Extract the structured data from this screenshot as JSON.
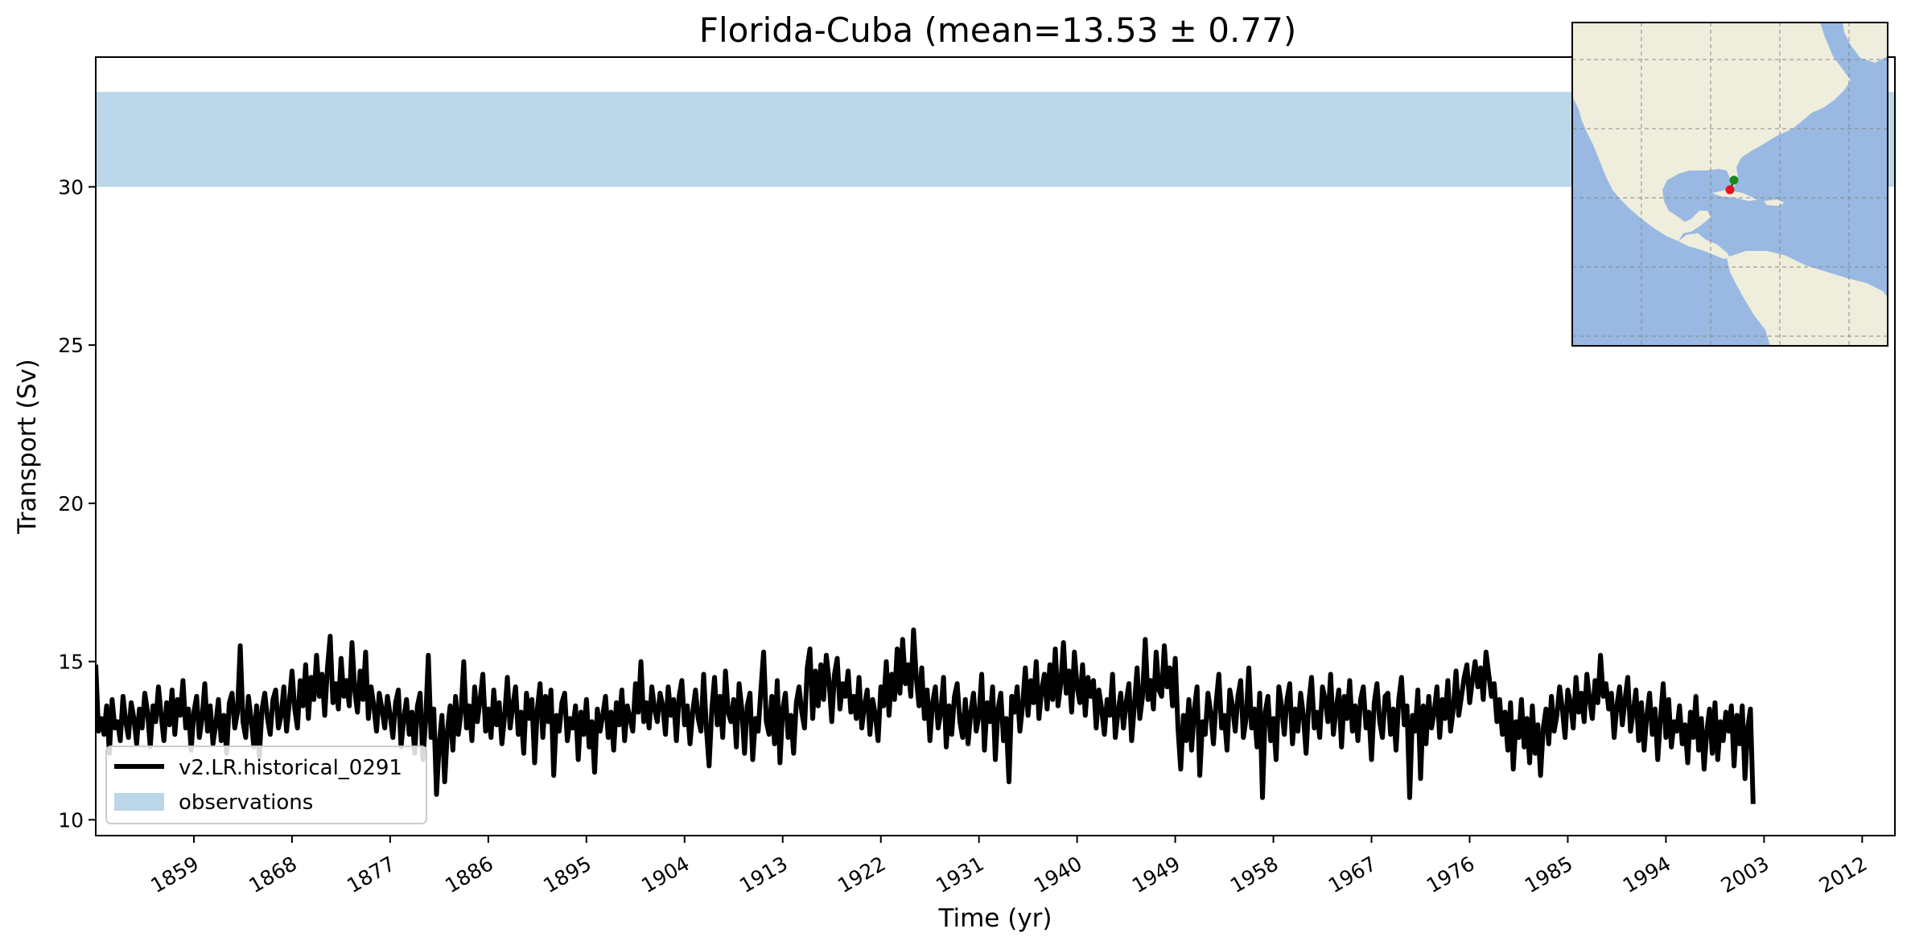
{
  "chart_data": {
    "type": "line",
    "title": "Florida-Cuba (mean=13.53 ± 0.77)",
    "xlabel": "Time (yr)",
    "ylabel": "Transport (Sv)",
    "xlim": [
      1850,
      2015
    ],
    "ylim": [
      9.5,
      34.1
    ],
    "x_ticks": [
      1859,
      1868,
      1877,
      1886,
      1895,
      1904,
      1913,
      1922,
      1931,
      1940,
      1949,
      1958,
      1967,
      1976,
      1985,
      1994,
      2003,
      2012
    ],
    "y_ticks": [
      10,
      15,
      20,
      25,
      30
    ],
    "grid": false,
    "legend_position": "lower-left",
    "series": [
      {
        "name": "v2.LR.historical_0291",
        "color": "#000000",
        "style": "line",
        "x_start": 1850,
        "x_step": 0.25,
        "values": [
          14.9,
          12.8,
          13.2,
          12.7,
          13.6,
          12.1,
          13.8,
          12.9,
          13.1,
          12.5,
          13.9,
          13.1,
          12.6,
          13.7,
          13.2,
          12.4,
          13.5,
          12.9,
          14.0,
          13.4,
          12.3,
          13.6,
          13.1,
          14.2,
          13.3,
          12.5,
          13.7,
          13.0,
          14.1,
          12.7,
          13.8,
          13.3,
          14.4,
          12.9,
          13.5,
          12.2,
          13.4,
          13.9,
          12.6,
          13.2,
          14.3,
          12.8,
          13.6,
          12.4,
          13.0,
          13.8,
          12.5,
          13.3,
          12.1,
          13.7,
          14.0,
          12.9,
          13.4,
          15.5,
          13.1,
          12.6,
          13.9,
          13.2,
          12.3,
          13.6,
          12.0,
          13.5,
          14.0,
          13.2,
          12.7,
          13.8,
          14.1,
          12.9,
          13.3,
          14.2,
          12.8,
          13.7,
          14.7,
          13.5,
          12.9,
          14.4,
          13.6,
          14.9,
          13.2,
          14.5,
          13.8,
          15.2,
          13.9,
          14.6,
          13.3,
          14.8,
          15.8,
          13.7,
          14.3,
          13.5,
          15.1,
          13.9,
          14.4,
          13.6,
          15.6,
          14.1,
          13.4,
          14.7,
          13.8,
          15.3,
          13.2,
          14.2,
          13.6,
          12.8,
          14.0,
          13.5,
          12.9,
          13.9,
          13.3,
          12.6,
          13.7,
          14.1,
          12.3,
          13.2,
          13.8,
          12.7,
          13.4,
          12.1,
          13.6,
          14.0,
          11.9,
          13.1,
          15.2,
          12.6,
          13.5,
          10.8,
          12.4,
          13.3,
          11.2,
          12.8,
          13.6,
          12.2,
          13.9,
          12.7,
          13.4,
          15.0,
          12.9,
          13.6,
          12.5,
          14.2,
          13.1,
          13.8,
          14.6,
          12.8,
          13.5,
          12.6,
          14.1,
          13.0,
          13.7,
          12.4,
          13.3,
          14.5,
          12.9,
          13.6,
          14.2,
          12.7,
          13.4,
          12.1,
          14.0,
          13.2,
          13.8,
          11.8,
          13.5,
          14.3,
          12.6,
          13.9,
          13.1,
          14.1,
          11.4,
          13.3,
          12.8,
          13.7,
          14.0,
          12.5,
          13.2,
          12.9,
          13.6,
          11.9,
          13.4,
          12.7,
          13.8,
          12.3,
          13.1,
          11.5,
          13.5,
          12.8,
          13.3,
          13.9,
          12.6,
          13.4,
          12.2,
          13.7,
          13.0,
          14.1,
          12.5,
          13.6,
          13.2,
          12.8,
          14.3,
          13.4,
          15.0,
          13.1,
          13.7,
          12.9,
          14.2,
          13.5,
          13.1,
          14.0,
          13.6,
          12.7,
          14.2,
          13.3,
          13.8,
          12.5,
          13.9,
          14.4,
          13.0,
          13.6,
          12.4,
          13.4,
          14.1,
          13.2,
          12.8,
          14.6,
          12.9,
          11.7,
          13.5,
          14.5,
          13.0,
          13.9,
          12.6,
          14.7,
          13.4,
          13.1,
          13.8,
          12.3,
          14.3,
          13.5,
          12.1,
          13.6,
          14.0,
          11.9,
          13.2,
          12.8,
          14.1,
          15.3,
          13.1,
          12.7,
          13.9,
          12.4,
          14.4,
          11.8,
          13.5,
          14.0,
          12.6,
          13.3,
          12.1,
          13.7,
          14.2,
          13.4,
          12.9,
          14.8,
          15.4,
          13.2,
          14.7,
          13.6,
          14.9,
          13.8,
          15.2,
          14.4,
          13.1,
          14.6,
          15.1,
          13.5,
          14.3,
          13.9,
          14.7,
          13.4,
          13.9,
          13.2,
          14.5,
          12.9,
          13.6,
          14.1,
          12.7,
          13.8,
          13.3,
          12.5,
          14.2,
          13.6,
          15.0,
          13.3,
          14.6,
          13.8,
          15.4,
          14.0,
          15.7,
          14.3,
          14.9,
          13.9,
          16.0,
          14.5,
          13.6,
          14.8,
          13.2,
          14.1,
          12.5,
          13.7,
          14.2,
          12.9,
          13.4,
          14.5,
          12.3,
          13.6,
          12.7,
          13.9,
          14.3,
          13.1,
          12.6,
          13.8,
          12.4,
          13.4,
          14.0,
          12.8,
          13.3,
          14.6,
          12.2,
          13.7,
          13.1,
          14.2,
          11.9,
          13.5,
          14.0,
          12.5,
          13.2,
          11.2,
          13.9,
          13.4,
          14.2,
          12.8,
          13.6,
          14.8,
          13.3,
          14.4,
          13.7,
          15.0,
          13.2,
          14.1,
          14.6,
          13.5,
          14.9,
          13.8,
          15.4,
          13.6,
          14.3,
          15.6,
          14.0,
          14.7,
          13.4,
          15.3,
          14.2,
          13.7,
          14.9,
          13.3,
          14.5,
          13.9,
          14.4,
          12.9,
          14.1,
          13.5,
          12.7,
          13.8,
          13.3,
          14.6,
          12.6,
          13.4,
          14.0,
          12.9,
          13.7,
          14.3,
          12.5,
          13.6,
          14.8,
          13.2,
          13.9,
          15.7,
          13.8,
          14.4,
          13.5,
          15.3,
          14.1,
          13.9,
          15.5,
          14.2,
          14.8,
          13.6,
          15.1,
          12.9,
          11.6,
          13.3,
          12.5,
          13.8,
          12.2,
          13.5,
          14.2,
          11.4,
          13.1,
          12.7,
          14.0,
          13.4,
          12.4,
          13.7,
          14.6,
          12.9,
          13.3,
          12.2,
          14.1,
          13.6,
          12.8,
          13.9,
          14.4,
          12.6,
          13.2,
          14.8,
          12.9,
          13.5,
          12.3,
          14.0,
          10.7,
          13.4,
          13.9,
          12.5,
          13.2,
          11.9,
          14.2,
          13.6,
          12.7,
          13.8,
          14.3,
          12.4,
          13.5,
          12.8,
          14.0,
          13.3,
          12.1,
          13.7,
          14.5,
          12.9,
          13.4,
          12.6,
          14.2,
          13.8,
          13.1,
          14.6,
          12.7,
          13.5,
          14.1,
          12.3,
          13.9,
          13.2,
          14.4,
          12.8,
          13.6,
          12.5,
          13.8,
          14.2,
          12.9,
          13.4,
          11.9,
          13.7,
          14.3,
          13.1,
          12.6,
          13.9,
          14.0,
          12.7,
          13.5,
          12.2,
          13.8,
          14.5,
          13.0,
          13.6,
          10.7,
          13.3,
          12.8,
          14.1,
          11.3,
          13.6,
          12.4,
          13.9,
          12.9,
          13.4,
          14.2,
          12.6,
          13.8,
          13.2,
          14.4,
          12.8,
          13.5,
          14.7,
          13.3,
          13.9,
          14.5,
          14.9,
          13.7,
          14.4,
          15.0,
          14.2,
          14.8,
          13.8,
          15.3,
          14.6,
          13.9,
          14.3,
          13.1,
          13.8,
          12.7,
          13.4,
          12.2,
          13.7,
          11.6,
          13.1,
          12.6,
          13.8,
          12.3,
          13.2,
          11.8,
          13.6,
          12.1,
          13.0,
          11.4,
          12.9,
          13.5,
          12.4,
          13.9,
          12.8,
          13.3,
          14.2,
          13.5,
          12.6,
          14.1,
          13.7,
          12.9,
          14.5,
          13.4,
          14.0,
          13.1,
          14.6,
          13.8,
          13.2,
          14.4,
          13.7,
          15.2,
          13.9,
          14.3,
          13.5,
          14.0,
          12.6,
          13.6,
          14.2,
          13.0,
          13.8,
          14.5,
          12.8,
          13.4,
          14.1,
          12.5,
          13.7,
          12.2,
          13.3,
          14.0,
          12.7,
          13.5,
          11.9,
          13.2,
          14.3,
          12.6,
          13.8,
          12.3,
          13.1,
          12.8,
          13.6,
          12.4,
          13.0,
          11.8,
          13.4,
          12.6,
          13.9,
          12.2,
          13.2,
          11.6,
          12.8,
          13.5,
          12.1,
          13.7,
          11.9,
          13.1,
          12.5,
          13.4,
          12.8,
          13.6,
          11.7,
          13.3,
          12.4,
          13.6,
          11.3,
          12.9,
          13.5,
          10.5
        ]
      },
      {
        "name": "observations",
        "color": "#bad6e8",
        "style": "band",
        "band": [
          30,
          33
        ]
      }
    ]
  },
  "inset_map": {
    "ocean_color": "#99b9e3",
    "land_color": "#efeedc",
    "markers": [
      {
        "name": "Florida",
        "color": "#1a8a1a"
      },
      {
        "name": "Cuba",
        "color": "#e8141c"
      }
    ]
  }
}
